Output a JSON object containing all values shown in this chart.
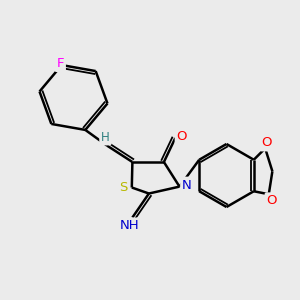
{
  "bg_color": "#ebebeb",
  "bond_color": "#000000",
  "bond_width": 1.8,
  "atom_colors": {
    "F": "#ff00ff",
    "O": "#ff0000",
    "N": "#0000cd",
    "S": "#b8b800",
    "H": "#2f8080",
    "C": "#000000"
  },
  "font_size": 9.5
}
